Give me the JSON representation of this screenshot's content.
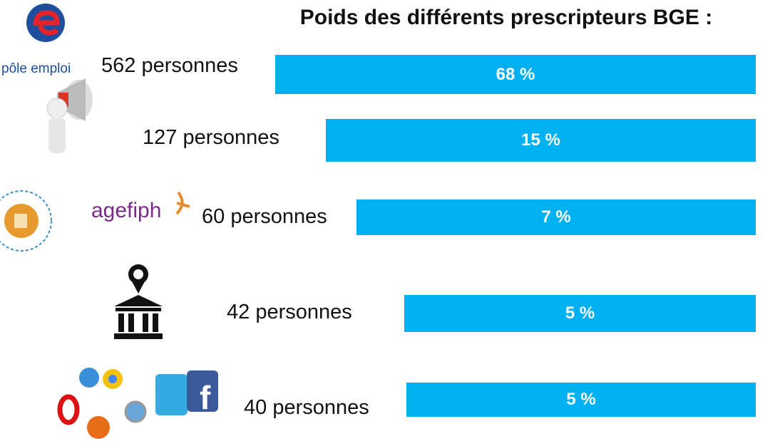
{
  "header": {
    "title": "Poids des différents prescripteurs BGE :"
  },
  "logos": {
    "pole_emploi": "pôle emploi",
    "agefiph": "agefiph"
  },
  "rows": [
    {
      "count": "562 personnes",
      "share": "68 %"
    },
    {
      "count": "127 personnes",
      "share": "15 %"
    },
    {
      "count": "60 personnes",
      "share": "7 %"
    },
    {
      "count": "42 personnes",
      "share": "5 %"
    },
    {
      "count": "40 personnes",
      "share": "5 %"
    }
  ]
}
